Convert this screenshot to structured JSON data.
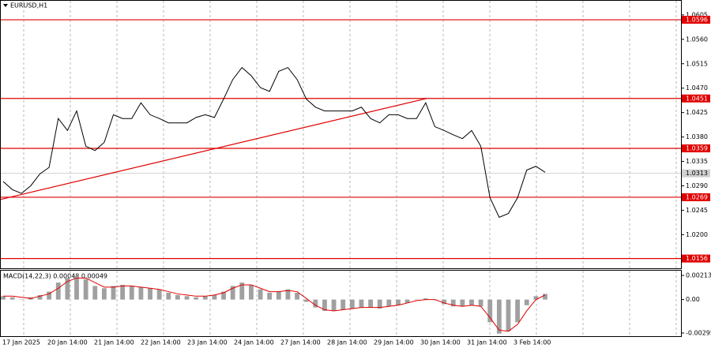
{
  "chart_data": {
    "type": "line",
    "title": "EURUSD,H1",
    "x_labels": [
      "17 Jan 2025",
      "20 Jan 14:00",
      "21 Jan 14:00",
      "22 Jan 14:00",
      "23 Jan 14:00",
      "24 Jan 14:00",
      "27 Jan 14:00",
      "28 Jan 14:00",
      "29 Jan 14:00",
      "30 Jan 14:00",
      "31 Jan 14:00",
      "3 Feb 14:00"
    ],
    "values": [
      1.0298,
      1.0283,
      1.0276,
      1.029,
      1.0312,
      1.0324,
      1.0414,
      1.0392,
      1.0428,
      1.0363,
      1.0355,
      1.037,
      1.0421,
      1.0414,
      1.0414,
      1.0443,
      1.0421,
      1.0414,
      1.0406,
      1.0406,
      1.0406,
      1.0416,
      1.0421,
      1.0416,
      1.045,
      1.0486,
      1.0508,
      1.0493,
      1.0471,
      1.0464,
      1.0501,
      1.0508,
      1.0486,
      1.045,
      1.0435,
      1.0428,
      1.0428,
      1.0428,
      1.0428,
      1.0435,
      1.0414,
      1.0406,
      1.0421,
      1.0421,
      1.0414,
      1.0414,
      1.0443,
      1.0399,
      1.0392,
      1.0384,
      1.0377,
      1.0392,
      1.0363,
      1.0268,
      1.0232,
      1.0239,
      1.0268,
      1.0319,
      1.0326,
      1.0315
    ],
    "color": "#000000",
    "ylim": [
      1.0138,
      1.0631
    ],
    "yticks": [
      1.0605,
      {
        "value": 1.056,
        "label": "1.0560"
      },
      1.0515,
      {
        "value": 1.047,
        "label": "1.0470"
      },
      1.0425,
      {
        "value": 1.038,
        "label": "1.0380"
      },
      1.0335,
      {
        "value": 1.029,
        "label": "1.0290"
      },
      1.0245,
      {
        "value": 1.02,
        "label": "1.0200"
      }
    ],
    "levels": [
      1.0596,
      1.0451,
      1.0359,
      1.0269,
      1.0156
    ],
    "level_color": "#e00000",
    "current_price": 1.0313,
    "trendline": [
      1.0265,
      1.0451
    ],
    "macd": {
      "title": "MACD(14,22,3) 0.00048 0.00049",
      "histogram": [
        0.0003,
        0.0002,
        0.0,
        0.0002,
        0.0004,
        0.0007,
        0.0015,
        0.0019,
        0.0021,
        0.0018,
        0.0012,
        0.001,
        0.0012,
        0.0013,
        0.0012,
        0.0011,
        0.001,
        0.0009,
        0.0006,
        0.0004,
        0.0003,
        0.0002,
        0.0003,
        0.0004,
        0.0007,
        0.0012,
        0.0015,
        0.0013,
        0.0009,
        0.0006,
        0.0007,
        0.0009,
        0.0006,
        -0.0002,
        -0.0007,
        -0.001,
        -0.001,
        -0.0009,
        -0.0008,
        -0.0007,
        -0.0007,
        -0.0008,
        -0.0006,
        -0.0005,
        -0.0003,
        0.0,
        0.0001,
        0.0,
        -0.0004,
        -0.0006,
        -0.0006,
        -0.0005,
        -0.0006,
        -0.002,
        -0.003,
        -0.0028,
        -0.002,
        -0.0005,
        0.0003,
        0.0005
      ],
      "signal": [
        0.0003,
        0.0003,
        0.0002,
        0.0001,
        0.0003,
        0.0005,
        0.001,
        0.0016,
        0.0019,
        0.0019,
        0.0015,
        0.0011,
        0.0011,
        0.0012,
        0.0012,
        0.0011,
        0.001,
        0.0009,
        0.0007,
        0.0005,
        0.0004,
        0.0003,
        0.0003,
        0.0004,
        0.0006,
        0.001,
        0.0013,
        0.0013,
        0.001,
        0.0007,
        0.0007,
        0.0008,
        0.0007,
        0.0001,
        -0.0005,
        -0.0009,
        -0.001,
        -0.0009,
        -0.0008,
        -0.0007,
        -0.0007,
        -0.0007,
        -0.0006,
        -0.0005,
        -0.0003,
        -0.0001,
        0.0,
        0.0,
        -0.0003,
        -0.0005,
        -0.0006,
        -0.0005,
        -0.0006,
        -0.0016,
        -0.0027,
        -0.0028,
        -0.0022,
        -0.001,
        0.0,
        0.0004
      ],
      "histogram_color": "#a0a0a0",
      "signal_color": "#e00000",
      "ylim": [
        -0.00323,
        0.00255
      ],
      "yticks": [
        0.00213,
        {
          "value": 0,
          "label": "0.00"
        },
        -0.00295
      ]
    }
  }
}
